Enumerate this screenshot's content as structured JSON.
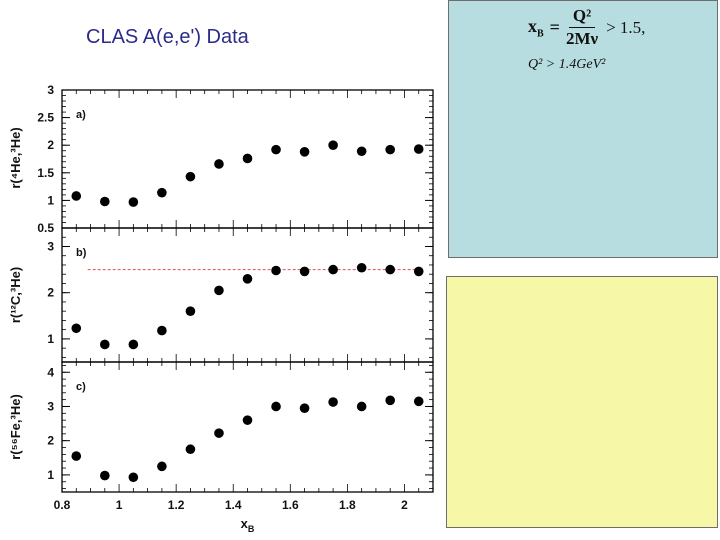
{
  "title": "CLAS A(e,e') Data",
  "formula": {
    "lhs": "x",
    "lhs_sub": "B",
    "equals": "=",
    "numerator": "Q²",
    "denominator": "2Mν",
    "rhs": "> 1.5,",
    "condition": "Q² > 1.4GeV²"
  },
  "colors": {
    "title": "#2b2b8a",
    "panel_top": "#b8dde0",
    "panel_bottom": "#f7f7a8",
    "reference_line": "#e05050",
    "marker": "#000000"
  },
  "chart_data": [
    {
      "type": "scatter",
      "panel_label": "a)",
      "ylabel": "r(⁴He,³He)",
      "xlim": [
        0.8,
        2.1
      ],
      "ylim": [
        0.5,
        3
      ],
      "yticks": [
        "3",
        "2.5",
        "2",
        "1.5",
        "1",
        "0.5"
      ],
      "yticks_values": [
        3,
        2.5,
        2,
        1.5,
        1,
        0.5
      ],
      "x": [
        0.85,
        0.95,
        1.05,
        1.15,
        1.25,
        1.35,
        1.45,
        1.55,
        1.65,
        1.75,
        1.85,
        1.95,
        2.05
      ],
      "y": [
        1.08,
        0.98,
        0.97,
        1.14,
        1.43,
        1.66,
        1.76,
        1.92,
        1.88,
        2.0,
        1.89,
        1.92,
        1.93
      ]
    },
    {
      "type": "scatter",
      "panel_label": "b)",
      "ylabel": "r(¹²C,³He)",
      "xlim": [
        0.8,
        2.1
      ],
      "ylim": [
        0.5,
        3.4
      ],
      "yticks": [
        "3",
        "2",
        "1"
      ],
      "yticks_values": [
        3,
        2,
        1
      ],
      "reference_line": 2.5,
      "x": [
        0.85,
        0.95,
        1.05,
        1.15,
        1.25,
        1.35,
        1.45,
        1.55,
        1.65,
        1.75,
        1.85,
        1.95,
        2.05
      ],
      "y": [
        1.23,
        0.88,
        0.88,
        1.18,
        1.6,
        2.05,
        2.3,
        2.48,
        2.46,
        2.5,
        2.54,
        2.5,
        2.46
      ]
    },
    {
      "type": "scatter",
      "panel_label": "c)",
      "ylabel": "r(⁵⁶Fe,³He)",
      "xlim": [
        0.8,
        2.1
      ],
      "ylim": [
        0.5,
        4.3
      ],
      "yticks": [
        "4",
        "3",
        "2",
        "1"
      ],
      "yticks_values": [
        4,
        3,
        2,
        1
      ],
      "xlabel": "x",
      "xlabel_sub": "B",
      "xticks": [
        "0.8",
        "1",
        "1.2",
        "1.4",
        "1.6",
        "1.8",
        "2"
      ],
      "xticks_values": [
        0.8,
        1.0,
        1.2,
        1.4,
        1.6,
        1.8,
        2.0
      ],
      "x": [
        0.85,
        0.95,
        1.05,
        1.15,
        1.25,
        1.35,
        1.45,
        1.55,
        1.65,
        1.75,
        1.85,
        1.95,
        2.05
      ],
      "y": [
        1.55,
        0.98,
        0.93,
        1.25,
        1.75,
        2.22,
        2.6,
        3.0,
        2.95,
        3.13,
        3.0,
        3.18,
        3.15
      ]
    }
  ]
}
